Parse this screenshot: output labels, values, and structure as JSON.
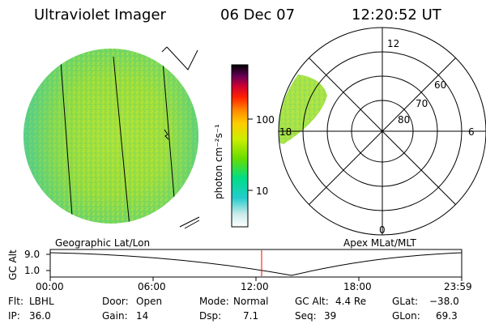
{
  "header": {
    "instrument": "Ultraviolet Imager",
    "date": "06 Dec 07",
    "time": "12:20:52 UT"
  },
  "colorbar": {
    "unit_label": "photon cm⁻²s⁻¹",
    "ticks": [
      "100",
      "10"
    ],
    "scale": "log",
    "colors": [
      "#ffffff",
      "#00cccc",
      "#00dd88",
      "#66dd00",
      "#ccee00",
      "#ffcc00",
      "#ff8800",
      "#ff3300",
      "#cc0000",
      "#880044",
      "#330044",
      "#000000"
    ]
  },
  "panels": {
    "geographic_label": "Geographic Lat/Lon",
    "apex_label": "Apex MLat/MLT"
  },
  "polar": {
    "mlt_labels": {
      "top": "12",
      "left": "18",
      "right": "6",
      "bottom": "0"
    },
    "lat_labels": [
      "60",
      "70",
      "80"
    ]
  },
  "timeline": {
    "y_axis_label": "GC Alt",
    "y_ticks": [
      "9.0",
      "1.0"
    ],
    "x_ticks": [
      "00:00",
      "06:00",
      "12:00",
      "18:00",
      "23:59"
    ],
    "marker_color": "#ff0000"
  },
  "footer": {
    "filter": {
      "label": "Flt:",
      "value": "LBHL"
    },
    "ip": {
      "label": "IP:",
      "value": "36.0"
    },
    "door": {
      "label": "Door:",
      "value": "Open"
    },
    "gain": {
      "label": "Gain:",
      "value": "14"
    },
    "mode": {
      "label": "Mode:",
      "value": "Normal"
    },
    "dsp": {
      "label": "Dsp:",
      "value": "7.1"
    },
    "gc_alt": {
      "label": "GC Alt:",
      "value": "4.4 Re"
    },
    "seq": {
      "label": "Seq:",
      "value": "39"
    },
    "glat": {
      "label": "GLat:",
      "value": "−38.0"
    },
    "glon": {
      "label": "GLon:",
      "value": "69.3"
    }
  }
}
